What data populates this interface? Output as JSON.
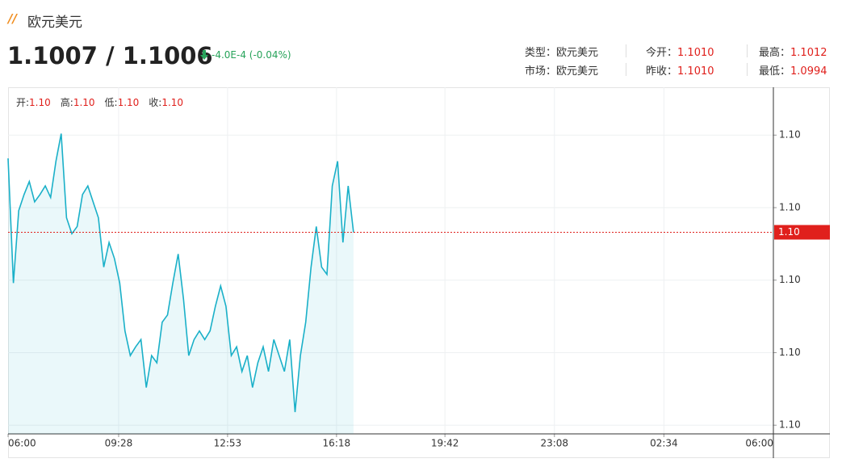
{
  "header": {
    "title": "欧元美元",
    "price": "1.1007 / 1.1006",
    "change": "-4.0E-4 (-0.04%)",
    "info": [
      {
        "label": "类型：",
        "value": "欧元美元"
      },
      {
        "label": "今开：",
        "value": "1.1010"
      },
      {
        "label": "最高：",
        "value": "1.1012"
      },
      {
        "label": "市场：",
        "value": "欧元美元"
      },
      {
        "label": "昨收：",
        "value": "1.1010"
      },
      {
        "label": "最低：",
        "value": "1.0994"
      }
    ]
  },
  "chart_data": {
    "type": "line",
    "ohlc": [
      {
        "key": "开:",
        "value": "1.10"
      },
      {
        "key": "高:",
        "value": "1.10"
      },
      {
        "key": "低:",
        "value": "1.10"
      },
      {
        "key": "收:",
        "value": "1.10"
      }
    ],
    "x": [
      "06:00",
      "06:10",
      "06:20",
      "06:30",
      "06:40",
      "06:50",
      "07:00",
      "07:10",
      "07:20",
      "07:30",
      "07:40",
      "07:50",
      "08:00",
      "08:10",
      "08:20",
      "08:30",
      "08:40",
      "08:50",
      "09:00",
      "09:10",
      "09:20",
      "09:30",
      "09:40",
      "09:50",
      "10:00",
      "10:10",
      "10:20",
      "10:30",
      "10:40",
      "10:50",
      "11:00",
      "11:10",
      "11:20",
      "11:30",
      "11:40",
      "11:50",
      "12:00",
      "12:10",
      "12:20",
      "12:30",
      "12:40",
      "12:50",
      "13:00",
      "13:10",
      "13:20",
      "13:30",
      "13:40",
      "13:50",
      "14:00",
      "14:10",
      "14:20",
      "14:30",
      "14:40",
      "14:50",
      "15:00",
      "15:10",
      "15:20",
      "15:30",
      "15:40",
      "15:50",
      "16:00",
      "16:10",
      "16:20",
      "16:30",
      "16:40",
      "16:50"
    ],
    "series": [
      {
        "color": "#1ab0c8",
        "values": [
          1.10104,
          1.10018,
          1.10068,
          1.10079,
          1.10088,
          1.10074,
          1.10079,
          1.10085,
          1.10077,
          1.10102,
          1.10121,
          1.10063,
          1.10052,
          1.10057,
          1.10079,
          1.10085,
          1.10074,
          1.10063,
          1.10029,
          1.10046,
          1.10035,
          1.10018,
          1.09985,
          1.09968,
          1.09974,
          1.09979,
          1.09946,
          1.09968,
          1.09963,
          1.09991,
          1.09996,
          1.10018,
          1.10038,
          1.10007,
          1.09968,
          1.09979,
          1.09985,
          1.09979,
          1.09985,
          1.10002,
          1.10016,
          1.10002,
          1.09968,
          1.09974,
          1.09957,
          1.09968,
          1.09946,
          1.09963,
          1.09974,
          1.09957,
          1.09979,
          1.09968,
          1.09957,
          1.09979,
          1.09929,
          1.09968,
          1.09991,
          1.10029,
          1.10057,
          1.10029,
          1.10024,
          1.10085,
          1.10102,
          1.10046,
          1.10085,
          1.10053
        ]
      }
    ],
    "last": {
      "value": 1.10053,
      "label": "1.10"
    },
    "xticks": [
      "06:00",
      "09:28",
      "12:53",
      "16:18",
      "19:42",
      "23:08",
      "02:34",
      "06:00"
    ],
    "ylim": [
      1.09914,
      1.10153
    ],
    "yticks": [
      {
        "value": 1.1012,
        "label": "1.10"
      },
      {
        "value": 1.1007,
        "label": "1.10"
      },
      {
        "value": 1.1002,
        "label": "1.10"
      },
      {
        "value": 1.0997,
        "label": "1.10"
      },
      {
        "value": 1.0992,
        "label": "1.10"
      }
    ],
    "grid": true
  }
}
